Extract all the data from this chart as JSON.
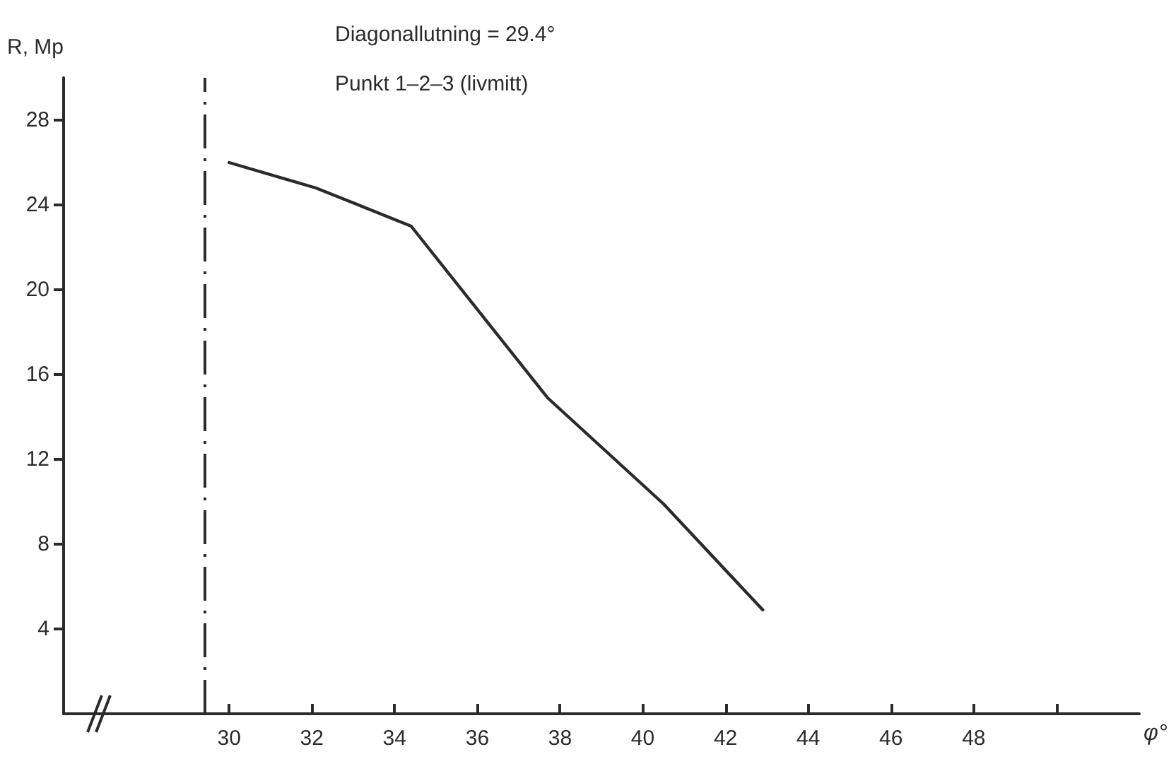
{
  "chart_data": {
    "type": "line",
    "title": "Diagonallutning = 29.4°",
    "subtitle": "Punkt 1–2–3 (livmitt)",
    "xlabel": "φ°",
    "ylabel": "R, Mp",
    "series": [
      {
        "color": "#2b2b2b",
        "x": [
          30,
          32.1,
          34.4,
          37.7,
          40.5,
          42.9
        ],
        "values": [
          26,
          24.8,
          23,
          14.9,
          9.9,
          4.9
        ]
      }
    ],
    "xlim": [
      26,
      52
    ],
    "xticks": [
      30,
      32,
      34,
      36,
      38,
      40,
      42,
      44,
      46,
      48,
      {
        "value": 50,
        "label": null
      }
    ],
    "ylim": [
      0,
      30
    ],
    "yticks": [
      4,
      8,
      12,
      16,
      20,
      24,
      28
    ],
    "ref_lines": [
      {
        "axis": "x",
        "value": 29.4,
        "color": "#2b2b2b",
        "line_style": "dashed"
      }
    ],
    "grid": false,
    "marker": "none",
    "line_style": "solid"
  }
}
